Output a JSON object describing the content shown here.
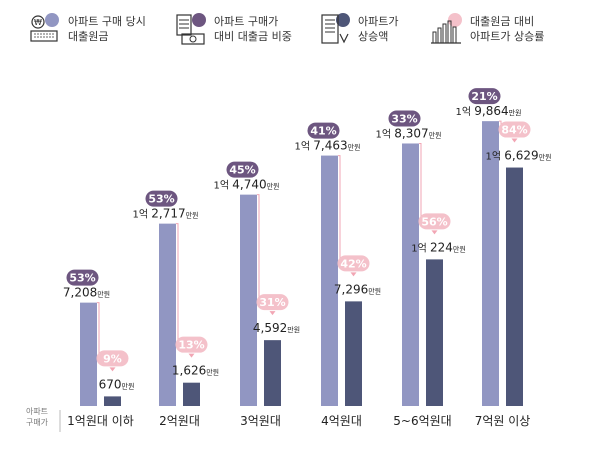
{
  "colors": {
    "loan_bar": "#9196c2",
    "price_bar": "#4e5678",
    "loan_badge": "#6d5680",
    "rate_badge": "#f4c1ca",
    "rate_text": "#ffffff",
    "connector": "#f2a6b4",
    "text": "#222222"
  },
  "legend": [
    {
      "icon": "won-coin-keyboard-icon",
      "line1": "아파트 구매 당시",
      "line2": "대출원금",
      "dot": "#9196c2"
    },
    {
      "icon": "calculator-document-icon",
      "line1": "아파트 구매가",
      "line2": "대비 대출금 비중",
      "dot": "#6d5680"
    },
    {
      "icon": "building-icon",
      "line1": "아파트가",
      "line2": "상승액",
      "dot": "#4e5678"
    },
    {
      "icon": "bar-chart-icon",
      "line1": "대출원금 대비",
      "line2": "아파트가 상승률",
      "dot": "#f4c1ca"
    }
  ],
  "axis_label": {
    "line1": "아파트",
    "line2": "구매가"
  },
  "chart_data": {
    "type": "bar",
    "categories": [
      "1억원대 이하",
      "2억원대",
      "3억원대",
      "4억원대",
      "5~6억원대",
      "7억원 이상"
    ],
    "units": "만원",
    "series": [
      {
        "name": "아파트 구매 당시 대출원금",
        "values": [
          7208,
          12717,
          14740,
          17463,
          18307,
          19864
        ]
      },
      {
        "name": "아파트가 상승액",
        "values": [
          670,
          1626,
          4592,
          7296,
          10224,
          16629
        ]
      }
    ],
    "loan_share_percent": [
      "53%",
      "53%",
      "45%",
      "41%",
      "33%",
      "21%"
    ],
    "rise_rate_percent": [
      "9%",
      "13%",
      "31%",
      "42%",
      "56%",
      "84%"
    ],
    "loan_labels": [
      {
        "eok": "",
        "num": "7,208",
        "unit": "만원"
      },
      {
        "eok": "1억",
        "num": "2,717",
        "unit": "만원"
      },
      {
        "eok": "1억",
        "num": "4,740",
        "unit": "만원"
      },
      {
        "eok": "1억",
        "num": "7,463",
        "unit": "만원"
      },
      {
        "eok": "1억",
        "num": "8,307",
        "unit": "만원"
      },
      {
        "eok": "1억",
        "num": "9,864",
        "unit": "만원"
      }
    ],
    "rise_labels": [
      {
        "eok": "",
        "num": "670",
        "unit": "만원"
      },
      {
        "eok": "",
        "num": "1,626",
        "unit": "만원"
      },
      {
        "eok": "",
        "num": "4,592",
        "unit": "만원"
      },
      {
        "eok": "",
        "num": "7,296",
        "unit": "만원"
      },
      {
        "eok": "1억",
        "num": "224",
        "unit": "만원"
      },
      {
        "eok": "1억",
        "num": "6,629",
        "unit": "만원"
      }
    ],
    "ylim": [
      0,
      22000
    ]
  }
}
